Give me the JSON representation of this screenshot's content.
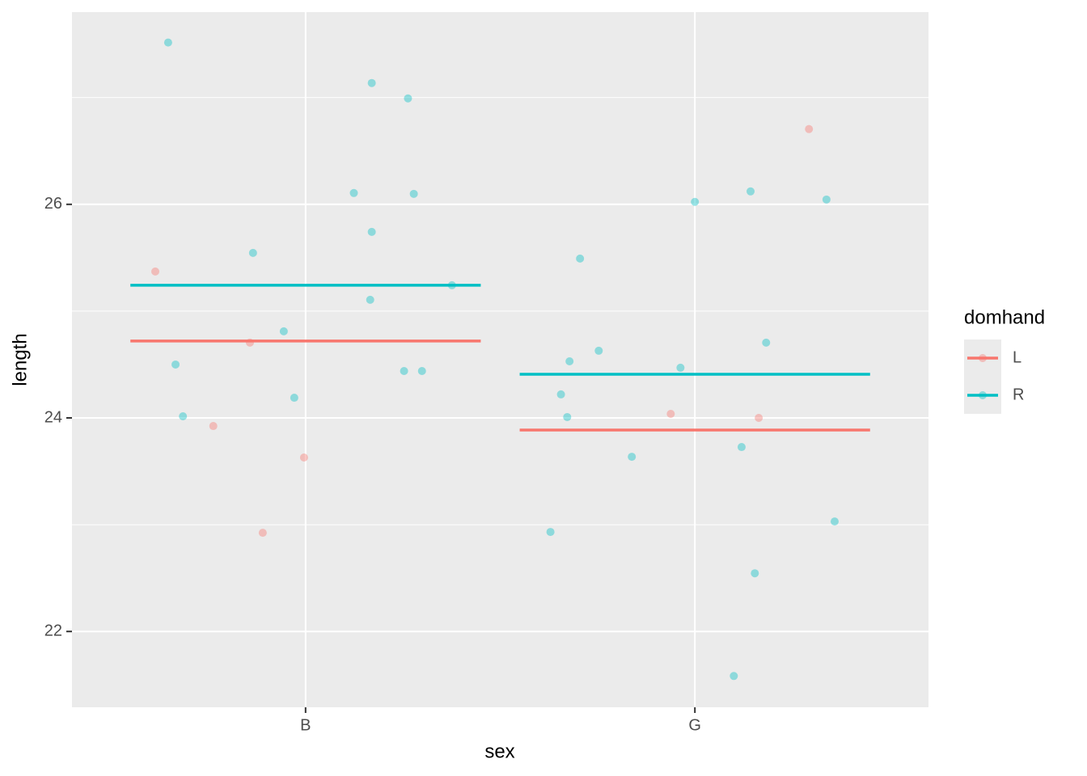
{
  "chart_data": {
    "type": "scatter",
    "x_label": "sex",
    "y_label": "length",
    "legend_title": "domhand",
    "legend_position": "right",
    "grid": true,
    "xlim": [
      0.4,
      2.6
    ],
    "xticks": [
      {
        "value": 1,
        "label": "B"
      },
      {
        "value": 2,
        "label": "G"
      }
    ],
    "ylim": [
      21.29,
      27.8
    ],
    "yticks": [
      22,
      24,
      26
    ],
    "y_minor_ticks": [
      23,
      25,
      27
    ],
    "series": [
      {
        "name": "L",
        "color": "#F8766D",
        "x": [
          0.614,
          0.857,
          0.763,
          0.996,
          0.89,
          2.293,
          1.938,
          2.164
        ],
        "values": [
          25.371,
          24.705,
          23.924,
          23.629,
          22.924,
          26.705,
          24.038,
          24.0
        ],
        "mean_values": [
          24.72,
          23.886
        ]
      },
      {
        "name": "R",
        "color": "#00BFC4",
        "x": [
          0.647,
          1.17,
          1.263,
          1.124,
          1.278,
          1.17,
          0.865,
          1.376,
          1.166,
          0.944,
          0.666,
          1.253,
          1.299,
          0.971,
          0.685,
          2.0,
          2.143,
          2.338,
          1.705,
          2.183,
          1.753,
          1.678,
          1.963,
          1.656,
          1.672,
          2.12,
          1.838,
          2.359,
          1.629,
          2.154,
          2.1
        ],
        "values": [
          27.515,
          27.136,
          26.992,
          26.106,
          26.098,
          25.742,
          25.545,
          25.242,
          25.106,
          24.811,
          24.5,
          24.439,
          24.439,
          24.189,
          24.015,
          26.023,
          26.121,
          26.045,
          25.492,
          24.705,
          24.629,
          24.53,
          24.47,
          24.22,
          24.008,
          23.727,
          23.636,
          23.03,
          22.932,
          22.545,
          21.583
        ],
        "mean_values": [
          25.242,
          24.409
        ]
      }
    ]
  }
}
